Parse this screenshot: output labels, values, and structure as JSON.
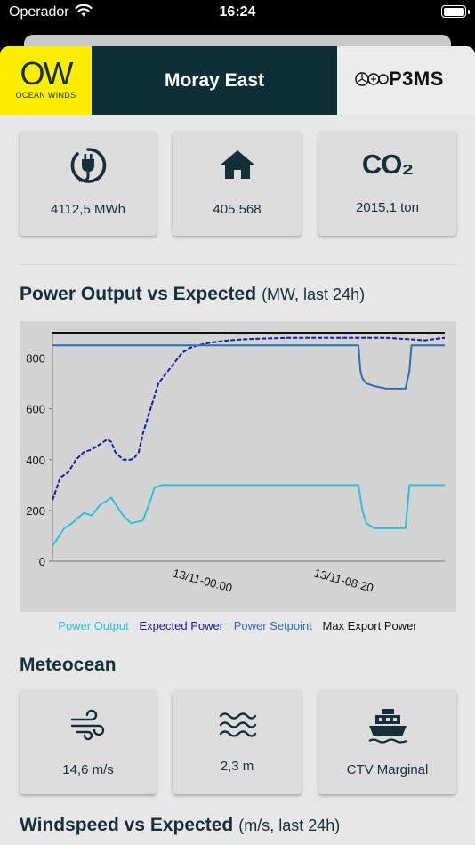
{
  "status": {
    "carrier": "Operador",
    "time": "16:24"
  },
  "header": {
    "logo_left_text": "OW",
    "logo_left_sub": "OCEAN WINDS",
    "title": "Moray East",
    "logo_right_text": "P3MS"
  },
  "kpis": [
    {
      "icon": "plug-icon",
      "value": "4112,5 MWh"
    },
    {
      "icon": "home-icon",
      "value": "405.568"
    },
    {
      "icon": "co2-icon",
      "value": "2015,1 ton",
      "icon_text": "CO₂"
    }
  ],
  "power_chart": {
    "title": "Power Output vs Expected",
    "subtitle": "(MW, last 24h)"
  },
  "chart_data": {
    "type": "line",
    "ylim": [
      0,
      900
    ],
    "yticks": [
      "800",
      "600",
      "400",
      "200",
      "0"
    ],
    "xtick_labels": [
      "13/11-00:00",
      "13/11-08:20"
    ],
    "series": [
      {
        "name": "Power Output",
        "color": "#2cc0d9",
        "style": "solid",
        "x": [
          0,
          3,
          5,
          8,
          10,
          12,
          15,
          18,
          20,
          23,
          25,
          26,
          28,
          30,
          32,
          35,
          36,
          38,
          40,
          42,
          48,
          60,
          75,
          78,
          79,
          80,
          82,
          88,
          90,
          91,
          100
        ],
        "y": [
          60,
          130,
          150,
          190,
          180,
          220,
          250,
          180,
          150,
          160,
          240,
          290,
          300,
          300,
          300,
          300,
          300,
          300,
          300,
          300,
          300,
          300,
          300,
          300,
          200,
          150,
          130,
          130,
          130,
          300,
          300
        ]
      },
      {
        "name": "Expected Power",
        "color": "#1c1ca6",
        "style": "dashed",
        "x": [
          0,
          2,
          4,
          6,
          8,
          10,
          12,
          14,
          15,
          16,
          18,
          20,
          21,
          22,
          23,
          25,
          27,
          29,
          31,
          33,
          35,
          37,
          40,
          45,
          50,
          60,
          70,
          80,
          85,
          90,
          95,
          100
        ],
        "y": [
          240,
          330,
          350,
          400,
          430,
          440,
          460,
          480,
          470,
          430,
          400,
          400,
          410,
          430,
          500,
          600,
          700,
          740,
          780,
          820,
          840,
          850,
          860,
          870,
          875,
          880,
          880,
          880,
          880,
          875,
          870,
          880
        ]
      },
      {
        "name": "Power Setpoint",
        "color": "#2e6db4",
        "style": "solid",
        "x": [
          0,
          78,
          78.5,
          79,
          80,
          82,
          85,
          88,
          90,
          91,
          91.5,
          92,
          100
        ],
        "y": [
          850,
          850,
          750,
          720,
          700,
          690,
          680,
          680,
          680,
          750,
          850,
          850,
          850
        ]
      },
      {
        "name": "Max Export Power",
        "color": "#111111",
        "style": "solid",
        "x": [
          0,
          100
        ],
        "y": [
          900,
          900
        ]
      }
    ]
  },
  "legend_colors": {
    "power_output": "#2cc0d9",
    "expected": "#1c1ca6",
    "setpoint": "#2e6db4",
    "max_export": "#111111"
  },
  "meteocean": {
    "title": "Meteocean",
    "cards": [
      {
        "icon": "wind-icon",
        "value": "14,6 m/s"
      },
      {
        "icon": "waves-icon",
        "value": "2,3 m"
      },
      {
        "icon": "boat-icon",
        "value": "CTV Marginal"
      }
    ]
  },
  "wind_chart": {
    "title": "Windspeed vs Expected",
    "subtitle": "(m/s, last 24h)"
  }
}
